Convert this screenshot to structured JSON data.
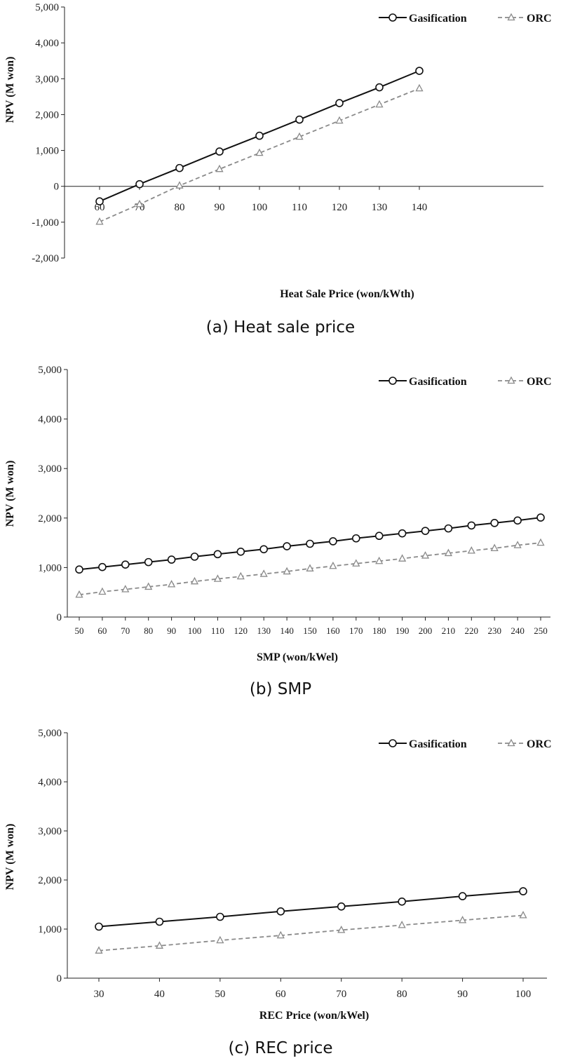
{
  "chart_data": [
    {
      "type": "line",
      "caption": "(a) Heat sale price",
      "xlabel": "Heat Sale Price  (won/kWth)",
      "ylabel": "NPV (M won)",
      "ylim": [
        -2000,
        5000
      ],
      "yticks": [
        "-2,000",
        "-1,000",
        "0",
        "1,000",
        "2,000",
        "3,000",
        "4,000",
        "5,000"
      ],
      "ytick_values": [
        -2000,
        -1000,
        0,
        1000,
        2000,
        3000,
        4000,
        5000
      ],
      "categories": [
        "60",
        "70",
        "80",
        "90",
        "100",
        "110",
        "120",
        "130",
        "140"
      ],
      "legend": "top-right",
      "grid": false,
      "series": [
        {
          "name": "Gasification",
          "color": "#111111",
          "marker": "circle",
          "style": "solid",
          "values": [
            -420,
            60,
            510,
            970,
            1410,
            1860,
            2320,
            2760,
            3220
          ]
        },
        {
          "name": "ORC",
          "color": "#8a8a8a",
          "marker": "triangle",
          "style": "dashed",
          "values": [
            -990,
            -500,
            20,
            480,
            930,
            1380,
            1830,
            2280,
            2730
          ]
        }
      ]
    },
    {
      "type": "line",
      "caption": "(b) SMP",
      "xlabel": "SMP (won/kWel)",
      "ylabel": "NPV (M won)",
      "ylim": [
        0,
        5000
      ],
      "yticks": [
        "0",
        "1,000",
        "2,000",
        "3,000",
        "4,000",
        "5,000"
      ],
      "ytick_values": [
        0,
        1000,
        2000,
        3000,
        4000,
        5000
      ],
      "categories": [
        "50",
        "60",
        "70",
        "80",
        "90",
        "100",
        "110",
        "120",
        "130",
        "140",
        "150",
        "160",
        "170",
        "180",
        "190",
        "200",
        "210",
        "220",
        "230",
        "240",
        "250"
      ],
      "legend": "top-right",
      "grid": false,
      "series": [
        {
          "name": "Gasification",
          "color": "#111111",
          "marker": "circle",
          "style": "solid",
          "values": [
            960,
            1010,
            1060,
            1110,
            1160,
            1220,
            1270,
            1320,
            1370,
            1430,
            1480,
            1530,
            1590,
            1640,
            1690,
            1740,
            1790,
            1850,
            1900,
            1950,
            2010
          ]
        },
        {
          "name": "ORC",
          "color": "#8a8a8a",
          "marker": "triangle",
          "style": "dashed",
          "values": [
            450,
            510,
            560,
            610,
            660,
            720,
            770,
            820,
            870,
            920,
            980,
            1030,
            1080,
            1130,
            1180,
            1240,
            1290,
            1340,
            1390,
            1450,
            1500
          ]
        }
      ]
    },
    {
      "type": "line",
      "caption": "(c) REC price",
      "xlabel": "REC Price (won/kWel)",
      "ylabel": "NPV (M won)",
      "ylim": [
        0,
        5000
      ],
      "yticks": [
        "0",
        "1,000",
        "2,000",
        "3,000",
        "4,000",
        "5,000"
      ],
      "ytick_values": [
        0,
        1000,
        2000,
        3000,
        4000,
        5000
      ],
      "categories": [
        "30",
        "40",
        "50",
        "60",
        "70",
        "80",
        "90",
        "100"
      ],
      "legend": "top-right",
      "grid": false,
      "series": [
        {
          "name": "Gasification",
          "color": "#111111",
          "marker": "circle",
          "style": "solid",
          "values": [
            1050,
            1150,
            1250,
            1360,
            1460,
            1560,
            1670,
            1770
          ]
        },
        {
          "name": "ORC",
          "color": "#8a8a8a",
          "marker": "triangle",
          "style": "dashed",
          "values": [
            560,
            660,
            770,
            870,
            980,
            1080,
            1180,
            1280
          ]
        }
      ]
    }
  ]
}
